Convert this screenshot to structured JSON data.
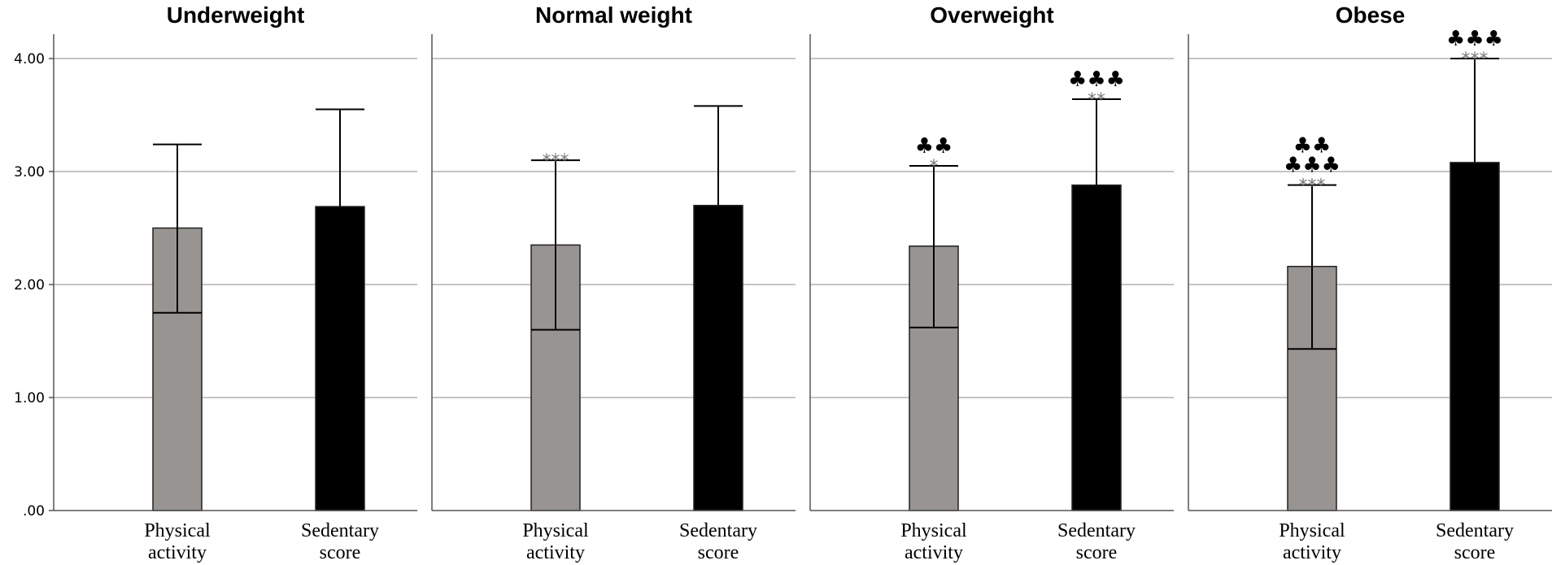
{
  "chart_data": {
    "type": "bar",
    "ylim": [
      0,
      4.2
    ],
    "yticks": [
      ".00",
      "1.00",
      "2.00",
      "3.00",
      "4.00"
    ],
    "ytick_values": [
      0,
      1,
      2,
      3,
      4
    ],
    "grid": true,
    "colors": {
      "physical": "#989491",
      "sedentary": "#000000",
      "grid": "#b0b0b0",
      "axis": "#555555"
    },
    "categories": [
      {
        "line1": "Physical",
        "line2": "activity"
      },
      {
        "line1": "Sedentary",
        "line2": "score"
      }
    ],
    "panels": [
      {
        "title": "Underweight",
        "bars": [
          {
            "value": 2.5,
            "err_low": 1.75,
            "err_high": 3.24,
            "stars": "",
            "clubs": []
          },
          {
            "value": 2.69,
            "err_low": 2.69,
            "err_high": 3.55,
            "stars": "",
            "clubs": []
          }
        ]
      },
      {
        "title": "Normal weight",
        "bars": [
          {
            "value": 2.35,
            "err_low": 1.6,
            "err_high": 3.1,
            "stars": "***",
            "clubs": []
          },
          {
            "value": 2.7,
            "err_low": 2.7,
            "err_high": 3.58,
            "stars": "",
            "clubs": []
          }
        ]
      },
      {
        "title": "Overweight",
        "bars": [
          {
            "value": 2.34,
            "err_low": 1.62,
            "err_high": 3.05,
            "stars": "*",
            "clubs": [
              "♣♣"
            ]
          },
          {
            "value": 2.88,
            "err_low": 2.88,
            "err_high": 3.64,
            "stars": "**",
            "clubs": [
              "♣♣♣"
            ]
          }
        ]
      },
      {
        "title": "Obese",
        "bars": [
          {
            "value": 2.16,
            "err_low": 1.43,
            "err_high": 2.88,
            "stars": "***",
            "clubs": [
              "♣♣",
              "♣♣♣"
            ]
          },
          {
            "value": 3.08,
            "err_low": 3.08,
            "err_high": 4.0,
            "stars": "***",
            "clubs": [
              "♣♣♣"
            ]
          }
        ]
      }
    ]
  }
}
